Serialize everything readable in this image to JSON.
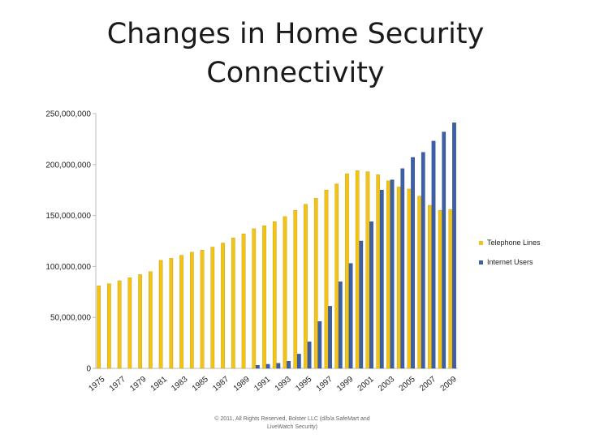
{
  "slide": {
    "title_line1": "Changes in Home Security",
    "title_line2": "Connectivity",
    "footer_line1": "© 2011, All Rights Reserved, Bolster LLC (d/b/a SafeMart and",
    "footer_line2": "LiveWatch Security)"
  },
  "chart_data": {
    "type": "bar",
    "categories": [
      "1975",
      "1976",
      "1977",
      "1978",
      "1979",
      "1980",
      "1981",
      "1982",
      "1983",
      "1984",
      "1985",
      "1986",
      "1987",
      "1988",
      "1989",
      "1990",
      "1991",
      "1992",
      "1993",
      "1994",
      "1995",
      "1996",
      "1997",
      "1998",
      "1999",
      "2000",
      "2001",
      "2002",
      "2003",
      "2004",
      "2005",
      "2006",
      "2007",
      "2008",
      "2009"
    ],
    "x_tick_labels": [
      "1975",
      "1977",
      "1979",
      "1981",
      "1983",
      "1985",
      "1987",
      "1989",
      "1991",
      "1993",
      "1995",
      "1997",
      "1999",
      "2001",
      "2003",
      "2005",
      "2007",
      "2009"
    ],
    "series": [
      {
        "name": "Telephone Lines",
        "color": "#F2C318",
        "values": [
          81000000,
          83000000,
          86000000,
          89000000,
          92000000,
          95000000,
          106000000,
          108000000,
          111000000,
          114000000,
          116000000,
          119000000,
          123000000,
          128000000,
          132000000,
          137000000,
          140000000,
          144000000,
          149000000,
          155000000,
          161000000,
          167000000,
          175000000,
          181000000,
          191000000,
          194000000,
          193000000,
          190000000,
          184000000,
          178000000,
          176000000,
          169000000,
          160000000,
          155000000,
          156000000
        ]
      },
      {
        "name": "Internet Users",
        "color": "#3D5FA6",
        "values": [
          0,
          0,
          0,
          0,
          0,
          0,
          0,
          0,
          0,
          0,
          0,
          0,
          0,
          0,
          0,
          3000000,
          4000000,
          5000000,
          7000000,
          14000000,
          26000000,
          46000000,
          61000000,
          85000000,
          103000000,
          125000000,
          144000000,
          175000000,
          185000000,
          196000000,
          207000000,
          212000000,
          223000000,
          232000000,
          241000000
        ]
      }
    ],
    "y_tick_labels": [
      "0",
      "50,000,000",
      "100,000,000",
      "150,000,000",
      "200,000,000",
      "250,000,000"
    ],
    "ylim": [
      0,
      250000000
    ],
    "legend_position": "right",
    "grid": false
  }
}
